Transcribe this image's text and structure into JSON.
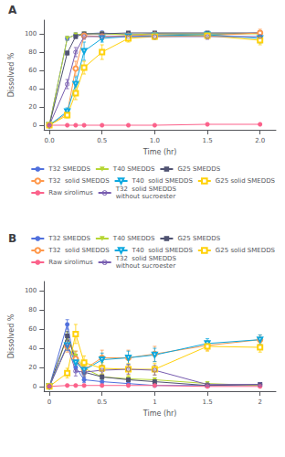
{
  "chart_data": [
    {
      "type": "line",
      "title": "A",
      "xlabel": "Time (hr)",
      "ylabel": "Dissolved %",
      "x": [
        0,
        0.17,
        0.25,
        0.33,
        0.5,
        0.75,
        1.0,
        1.5,
        2.0
      ],
      "xlim": [
        -0.05,
        2.15
      ],
      "ylim": [
        -5,
        115
      ],
      "xticks": [
        {
          "value": 0,
          "label": "0.0"
        },
        0.5,
        {
          "value": 1,
          "label": "1.0"
        },
        1.5,
        {
          "value": 2,
          "label": "2.0"
        }
      ],
      "yticks": [
        0,
        20,
        40,
        60,
        80,
        100
      ],
      "grid": false,
      "legend": "lower right",
      "series": [
        {
          "name": "T32 SMEDDS",
          "marker": "circle",
          "values": [
            0,
            95,
            99,
            100,
            101,
            99,
            100,
            99,
            101
          ],
          "sd": [
            0,
            2,
            2,
            1.5,
            2,
            1.5,
            1.5,
            2,
            2
          ]
        },
        {
          "name": "T40 SMEDDS",
          "marker": "triangle_down",
          "values": [
            0,
            95,
            99,
            100,
            100,
            99,
            100,
            100,
            100
          ],
          "sd": [
            0,
            2,
            1.5,
            1.5,
            1.5,
            1.5,
            1.5,
            1.5,
            1.5
          ]
        },
        {
          "name": "G25 SMEDDS",
          "marker": "square",
          "values": [
            0,
            79,
            97,
            100,
            100,
            101,
            101,
            101,
            101
          ],
          "sd": [
            0,
            2,
            2,
            1.5,
            1.5,
            1.5,
            1.5,
            1.5,
            1.5
          ]
        },
        {
          "name": "T32  solid SMEDDS",
          "marker": "open_circle",
          "values": [
            0,
            13,
            62,
            98,
            97,
            98,
            99,
            98,
            101
          ],
          "sd": [
            0,
            3,
            8,
            3,
            3,
            3,
            3,
            3,
            4
          ]
        },
        {
          "name": "T40  solid SMEDDS",
          "marker": "open_triangle_down",
          "values": [
            0,
            15,
            45,
            81,
            95,
            97,
            98,
            99,
            95
          ],
          "sd": [
            0,
            4,
            8,
            10,
            4,
            3,
            3,
            3,
            5
          ]
        },
        {
          "name": "G25 solid SMEDDS",
          "marker": "open_square",
          "values": [
            0,
            11,
            35,
            63,
            80,
            95,
            97,
            98,
            93
          ],
          "sd": [
            0,
            3,
            7,
            7,
            8,
            4,
            3,
            3,
            5
          ]
        },
        {
          "name": "Raw sirolimus",
          "marker": "circle",
          "values": [
            0,
            0,
            0,
            0,
            0,
            0,
            0,
            1,
            1
          ],
          "sd": [
            0,
            0,
            0,
            0,
            0,
            0,
            0,
            0.5,
            0.5
          ]
        },
        {
          "name": "T32  solid SMEDDS\nwithout sucroester",
          "marker": "circled_x",
          "values": [
            0,
            45,
            80,
            97,
            97,
            97,
            97,
            97,
            97
          ],
          "sd": [
            0,
            5,
            5,
            3,
            3,
            3,
            3,
            3,
            5
          ]
        }
      ]
    },
    {
      "type": "line",
      "title": "B",
      "xlabel": "Time (hr)",
      "ylabel": "Dissolved %",
      "x": [
        0,
        0.17,
        0.25,
        0.33,
        0.5,
        0.75,
        1.0,
        1.5,
        2.0
      ],
      "xlim": [
        -0.05,
        2.15
      ],
      "ylim": [
        -5,
        110
      ],
      "xticks": [
        0,
        0.5,
        1,
        1.5,
        2
      ],
      "yticks": [
        0,
        20,
        40,
        60,
        80,
        100
      ],
      "grid": false,
      "legend": "upper right",
      "series": [
        {
          "name": "T32 SMEDDS",
          "marker": "circle",
          "values": [
            0,
            65,
            20,
            7,
            5,
            3,
            1,
            1,
            2
          ],
          "sd": [
            0,
            5,
            5,
            3,
            2,
            2,
            1,
            1,
            2
          ]
        },
        {
          "name": "T40 SMEDDS",
          "marker": "triangle_down",
          "values": [
            0,
            52,
            32,
            19,
            10,
            8,
            7,
            3,
            1
          ],
          "sd": [
            0,
            5,
            5,
            4,
            3,
            3,
            2,
            2,
            2
          ]
        },
        {
          "name": "G25 SMEDDS",
          "marker": "square",
          "values": [
            0,
            53,
            28,
            15,
            10,
            7,
            5,
            1,
            2
          ],
          "sd": [
            0,
            5,
            5,
            3,
            2,
            2,
            2,
            1,
            2
          ]
        },
        {
          "name": "T32  solid SMEDDS",
          "marker": "open_circle",
          "values": [
            0,
            42,
            29,
            18,
            30,
            30,
            34,
            43,
            49
          ],
          "sd": [
            0,
            6,
            8,
            8,
            8,
            8,
            8,
            5,
            5
          ]
        },
        {
          "name": "T40  solid SMEDDS",
          "marker": "open_triangle_down",
          "values": [
            0,
            43,
            25,
            17,
            28,
            30,
            33,
            45,
            49
          ],
          "sd": [
            0,
            5,
            7,
            7,
            7,
            7,
            7,
            5,
            5
          ]
        },
        {
          "name": "G25 solid SMEDDS",
          "marker": "open_square",
          "values": [
            0,
            14,
            55,
            25,
            19,
            18,
            18,
            42,
            41
          ],
          "sd": [
            0,
            5,
            10,
            7,
            6,
            6,
            6,
            5,
            5
          ]
        },
        {
          "name": "Raw sirolimus",
          "marker": "circle",
          "values": [
            0,
            1,
            1,
            1,
            1,
            1,
            1,
            0,
            0
          ],
          "sd": [
            0,
            0.5,
            0.5,
            0.5,
            0.5,
            0.5,
            0.5,
            0.5,
            0.5
          ]
        },
        {
          "name": "T32  solid SMEDDS\nwithout sucroester",
          "marker": "circled_x",
          "values": [
            0,
            43,
            16,
            15,
            17,
            18,
            17,
            2,
            2
          ],
          "sd": [
            0,
            5,
            5,
            5,
            5,
            5,
            5,
            1,
            1
          ]
        }
      ]
    }
  ]
}
